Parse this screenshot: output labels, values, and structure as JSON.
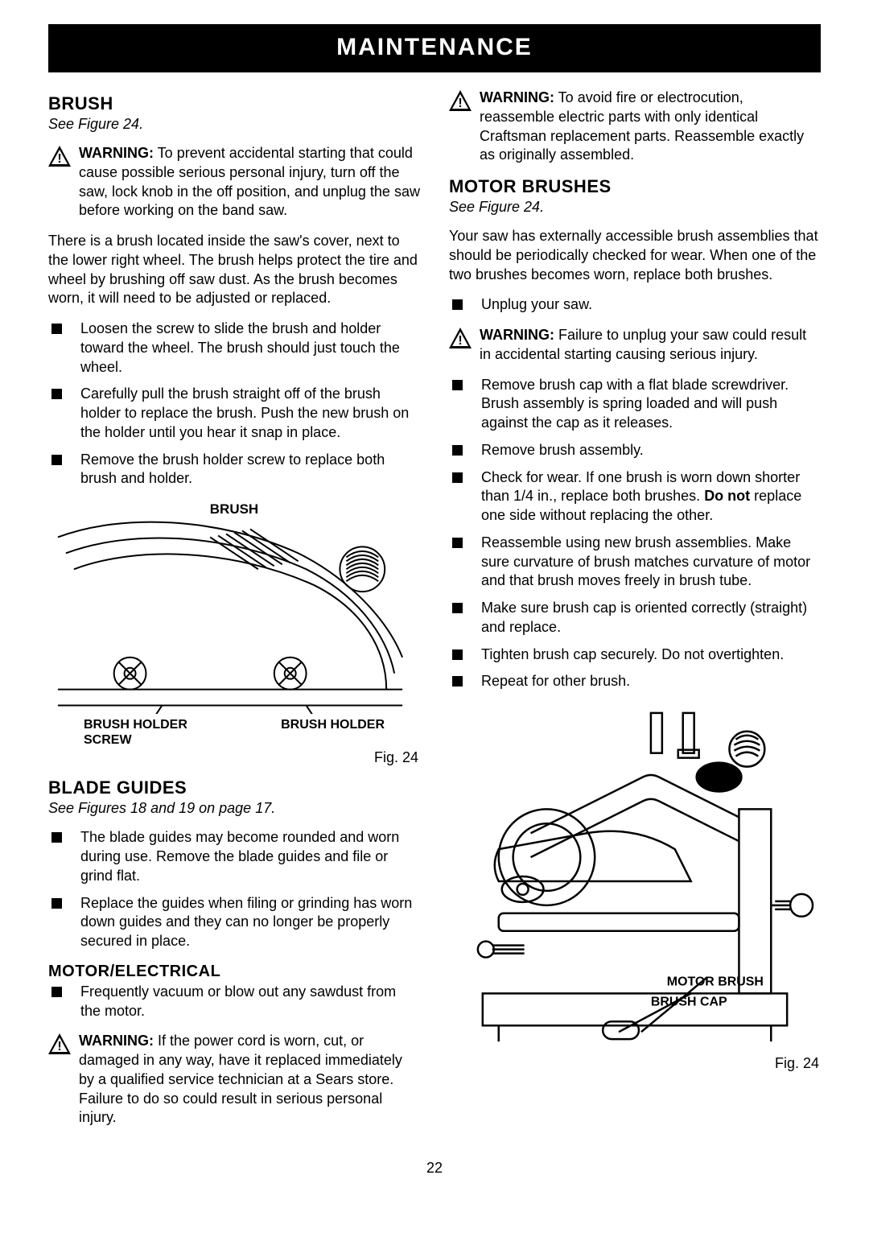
{
  "banner": "MAINTENANCE",
  "page_number": "22",
  "left": {
    "brush": {
      "heading": "BRUSH",
      "see": "See Figure 24.",
      "warn1_label": "WARNING:",
      "warn1_text": " To prevent accidental starting that could cause possible serious personal injury, turn off the saw, lock knob in the off position, and unplug the saw before working on the band saw.",
      "para1": "There is a brush located inside the saw's cover, next to the lower right wheel. The brush helps protect the tire and wheel by brushing off saw dust. As the brush becomes worn, it will need to be adjusted or replaced.",
      "items": [
        "Loosen the screw to slide the brush and holder toward the wheel. The brush should just touch the wheel.",
        "Carefully pull the brush straight off of the brush holder to replace the brush. Push the new brush on the holder until you hear it snap in place.",
        "Remove the brush holder screw to replace both brush and holder."
      ],
      "fig_top": "BRUSH",
      "fig_bl1": "BRUSH HOLDER",
      "fig_bl2": "SCREW",
      "fig_br": "BRUSH HOLDER",
      "fig_cap": "Fig. 24"
    },
    "blade_guides": {
      "heading": "BLADE GUIDES",
      "see": "See Figures 18 and 19 on page 17.",
      "items": [
        "The blade guides may become rounded and worn during use. Remove the blade guides and file or grind flat.",
        "Replace the guides when filing or grinding has worn down guides and they can no longer be properly secured in place."
      ]
    },
    "motor_elec": {
      "heading": "MOTOR/ELECTRICAL",
      "items": [
        "Frequently vacuum or blow out any sawdust from the motor."
      ],
      "warn_label": "WARNING:",
      "warn_text": " If the power cord is worn, cut, or damaged in any way, have it replaced immediately by a qualified service technician at a Sears store. Failure to do so could result in serious personal injury."
    }
  },
  "right": {
    "warn_top_label": "WARNING:",
    "warn_top_text": " To avoid fire or electrocution, reassemble electric parts with only identical Craftsman replacement parts. Reassemble exactly as originally assembled.",
    "motor_brushes": {
      "heading": "MOTOR BRUSHES",
      "see": "See Figure 24.",
      "intro": "Your saw has externally accessible brush assemblies that should be periodically checked for wear. When one of the two brushes becomes worn, replace both brushes.",
      "item1": "Unplug your saw.",
      "warn_label": "WARNING:",
      "warn_text": " Failure to unplug your saw could result in accidental starting causing serious injury.",
      "items_rest": [
        "Remove brush cap with a flat blade screwdriver. Brush assembly is spring loaded and will push against the cap as it releases.",
        "Remove brush assembly.",
        "Check for wear. If one brush is worn down shorter than 1/4 in., replace both brushes. <b>Do not</b> replace one side without replacing the other.",
        "Reassemble using new brush assemblies. Make sure curvature of brush matches curvature of motor and that brush moves freely in brush tube.",
        "Make sure brush cap is oriented correctly (straight) and replace.",
        "Tighten brush cap securely. Do not overtighten.",
        "Repeat for other brush."
      ],
      "fig_label1": "MOTOR BRUSH",
      "fig_label2": "BRUSH CAP",
      "fig_cap": "Fig. 24"
    }
  }
}
